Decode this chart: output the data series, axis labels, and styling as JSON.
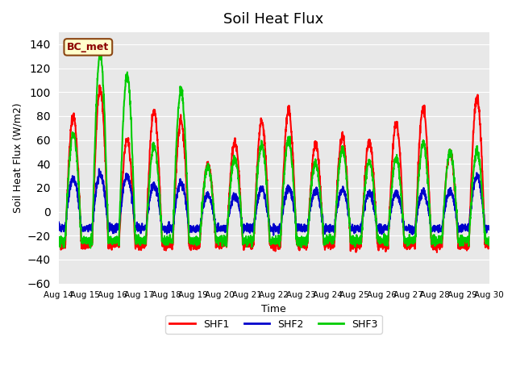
{
  "title": "Soil Heat Flux",
  "ylabel": "Soil Heat Flux (W/m2)",
  "xlabel": "Time",
  "ylim": [
    -60,
    150
  ],
  "yticks": [
    -60,
    -40,
    -20,
    0,
    20,
    40,
    60,
    80,
    100,
    120,
    140
  ],
  "annotation": "BC_met",
  "bg_color": "#e8e8e8",
  "line_colors": {
    "SHF1": "#ff0000",
    "SHF2": "#0000cc",
    "SHF3": "#00cc00"
  },
  "line_widths": {
    "SHF1": 1.5,
    "SHF2": 1.5,
    "SHF3": 1.5
  },
  "start_day": 14,
  "end_day": 29,
  "points_per_day": 144,
  "daily_peaks_shf1": [
    80,
    102,
    60,
    85,
    76,
    40,
    58,
    75,
    84,
    56,
    63,
    58,
    74,
    86,
    50,
    95
  ],
  "daily_peaks_shf2": [
    40,
    45,
    43,
    32,
    35,
    20,
    18,
    27,
    28,
    24,
    27,
    22,
    22,
    24,
    25,
    42
  ],
  "daily_peaks_shf3": [
    65,
    132,
    114,
    55,
    102,
    38,
    44,
    56,
    60,
    40,
    52,
    42,
    45,
    57,
    50,
    50
  ],
  "legend_entries": [
    "SHF1",
    "SHF2",
    "SHF3"
  ]
}
